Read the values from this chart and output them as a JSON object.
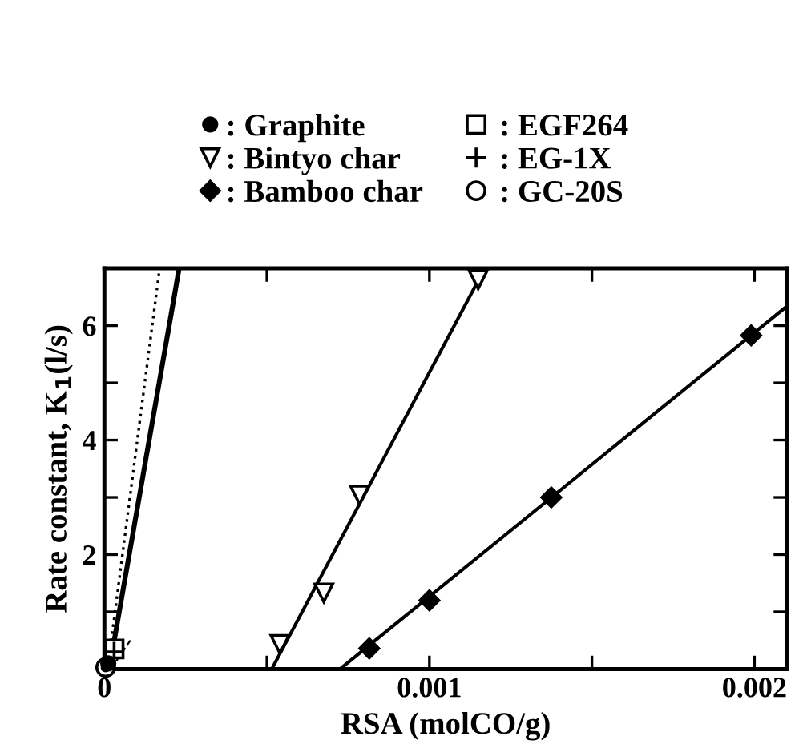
{
  "chart_data": {
    "type": "scatter",
    "xlabel": "RSA (molCO/g)",
    "ylabel": "Rate constant, K$_{1}$(l/s)",
    "xlim": [
      0,
      0.0021
    ],
    "ylim": [
      0,
      7
    ],
    "xticks": [
      0,
      {
        "value": 0.0005,
        "label": null
      },
      0.001,
      {
        "value": 0.0015,
        "label": null
      },
      0.002
    ],
    "yticks": [
      {
        "value": 0,
        "label": null
      },
      {
        "value": 1,
        "label": null
      },
      2,
      {
        "value": 3,
        "label": null
      },
      4,
      {
        "value": 5,
        "label": null
      },
      6
    ],
    "grid": false,
    "legend": "top",
    "series": [
      {
        "name": ": Graphite",
        "color": "#000000",
        "marker": "circle",
        "x": [
          1.2e-05
        ],
        "values": [
          0.1
        ]
      },
      {
        "name": ": Bintyo char",
        "color": "#000000",
        "marker": "triangle",
        "x": [
          0.00054,
          0.000675,
          0.000785,
          0.00115
        ],
        "values": [
          0.43,
          1.33,
          3.04,
          6.8
        ]
      },
      {
        "name": ": Bamboo char",
        "color": "#000000",
        "marker": "diamond",
        "x": [
          0.000815,
          0.001,
          0.001375,
          0.00199
        ],
        "values": [
          0.36,
          1.2,
          3.0,
          5.83
        ]
      },
      {
        "name": " : EGF264",
        "color": "#000000",
        "marker": "square",
        "x": [
          3e-05
        ],
        "values": [
          0.35
        ]
      },
      {
        "name": " : EG-1X",
        "color": "#000000",
        "marker": "cross",
        "x": [
          3e-05
        ],
        "values": [
          0.3
        ]
      },
      {
        "name": " : GC-20S",
        "color": "#000000",
        "marker": "circle",
        "x": [
          4e-06
        ],
        "values": [
          0.03
        ]
      },
      {
        "type": "line",
        "color": "#000000",
        "line_style": "solid",
        "x": [
          1.5e-05,
          0.00023
        ],
        "values": [
          0,
          7
        ]
      },
      {
        "type": "line",
        "color": "#000000",
        "line_style": "dotted",
        "x": [
          1e-05,
          0.00017
        ],
        "values": [
          0,
          7
        ]
      },
      {
        "type": "line",
        "color": "#000000",
        "line_style": "dashed",
        "x": [
          2e-05,
          8e-05
        ],
        "values": [
          0,
          0.5
        ]
      },
      {
        "type": "line",
        "color": "#000000",
        "line_style": "solid",
        "x": [
          0.000515,
          0.00117
        ],
        "values": [
          0,
          7
        ]
      },
      {
        "type": "line",
        "color": "#000000",
        "line_style": "solid",
        "x": [
          0.000725,
          0.0021
        ],
        "values": [
          0,
          6.34
        ]
      }
    ]
  }
}
